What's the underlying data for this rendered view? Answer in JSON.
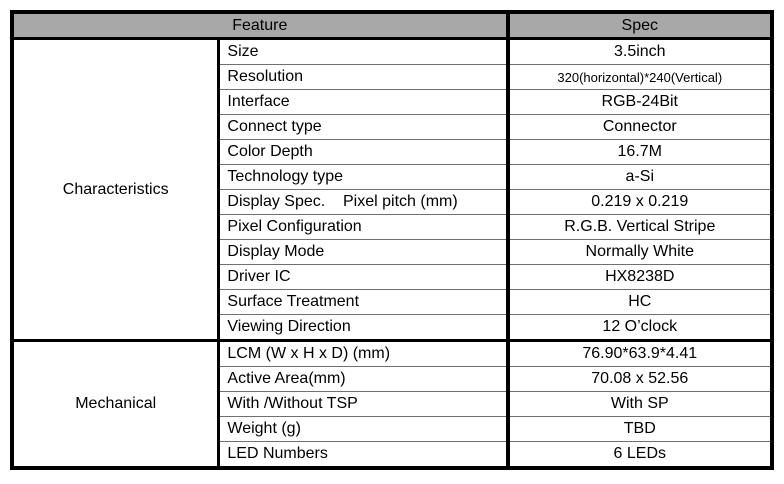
{
  "colors": {
    "header_background": "#a8a8a8",
    "border": "#000000",
    "row_separator": "#707070",
    "page_background": "#ffffff"
  },
  "table": {
    "header": {
      "feature": "Feature",
      "spec": "Spec"
    },
    "sections": [
      {
        "group": "Characteristics",
        "rows": [
          {
            "feature": "Size",
            "spec": "3.5inch"
          },
          {
            "feature": "Resolution",
            "spec": "320(horizontal)*240(Vertical)"
          },
          {
            "feature": "Interface",
            "spec": "RGB-24Bit"
          },
          {
            "feature": "Connect type",
            "spec": "Connector"
          },
          {
            "feature": "Color Depth",
            "spec": "16.7M"
          },
          {
            "feature": "Technology type",
            "spec": "a-Si"
          },
          {
            "feature": "Display Spec.    Pixel pitch (mm)",
            "spec": "0.219 x 0.219"
          },
          {
            "feature": "Pixel Configuration",
            "spec": "R.G.B. Vertical Stripe"
          },
          {
            "feature": "Display Mode",
            "spec": "Normally White"
          },
          {
            "feature": "Driver IC",
            "spec": "HX8238D"
          },
          {
            "feature": "Surface Treatment",
            "spec": "HC"
          },
          {
            "feature": "Viewing Direction",
            "spec": "12 O’clock"
          }
        ]
      },
      {
        "group": "Mechanical",
        "rows": [
          {
            "feature": "LCM (W x H x D) (mm)",
            "spec": "76.90*63.9*4.41"
          },
          {
            "feature": "Active Area(mm)",
            "spec": "70.08 x 52.56"
          },
          {
            "feature": "With /Without TSP",
            "spec": "With SP"
          },
          {
            "feature": "Weight (g)",
            "spec": "TBD"
          },
          {
            "feature": "LED Numbers",
            "spec": "6 LEDs"
          }
        ]
      }
    ]
  }
}
